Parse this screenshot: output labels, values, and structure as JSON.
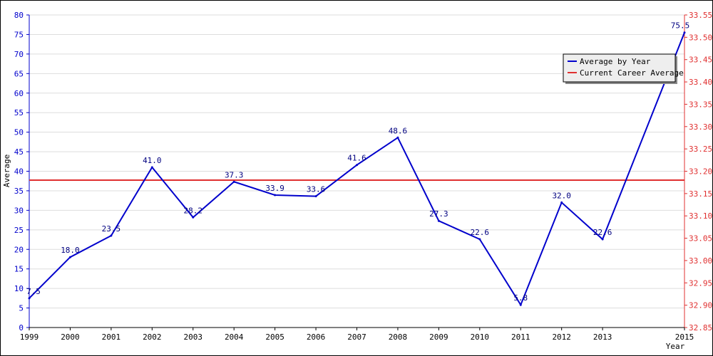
{
  "chart_data": {
    "type": "line",
    "x": [
      1999,
      2000,
      2001,
      2002,
      2003,
      2004,
      2005,
      2006,
      2007,
      2008,
      2009,
      2010,
      2011,
      2012,
      2013,
      2015
    ],
    "x_ticks": [
      "1999",
      "2000",
      "2001",
      "2002",
      "2003",
      "2004",
      "2005",
      "2006",
      "2007",
      "2008",
      "2009",
      "2010",
      "2011",
      "2012",
      "2013",
      "2015"
    ],
    "series": [
      {
        "name": "Average by Year",
        "color": "#0000cc",
        "values": [
          7.5,
          18.0,
          23.5,
          41.0,
          28.2,
          37.3,
          33.9,
          33.6,
          41.6,
          48.6,
          27.3,
          22.6,
          5.8,
          32.0,
          22.6,
          75.5
        ],
        "labels": [
          "7.5",
          "18.0",
          "23.5",
          "41.0",
          "28.2",
          "37.3",
          "33.9",
          "33.6",
          "41.6",
          "48.6",
          "27.3",
          "22.6",
          "5.8",
          "32.0",
          "22.6",
          "75.5"
        ]
      },
      {
        "name": "Current Career Average",
        "color": "#e03030",
        "axis": "right",
        "value": 33.18
      }
    ],
    "xlabel": "Year",
    "ylabel": "Average",
    "ylim": [
      0,
      80
    ],
    "yticks": [
      "0",
      "5",
      "10",
      "15",
      "20",
      "25",
      "30",
      "35",
      "40",
      "45",
      "50",
      "55",
      "60",
      "65",
      "70",
      "75",
      "80"
    ],
    "y2lim": [
      32.85,
      33.55
    ],
    "y2ticks": [
      "32.85",
      "32.90",
      "32.95",
      "33.00",
      "33.05",
      "33.10",
      "33.15",
      "33.20",
      "33.25",
      "33.30",
      "33.35",
      "33.40",
      "33.45",
      "33.50",
      "33.55"
    ],
    "grid": true,
    "legend_position": "top-right"
  }
}
